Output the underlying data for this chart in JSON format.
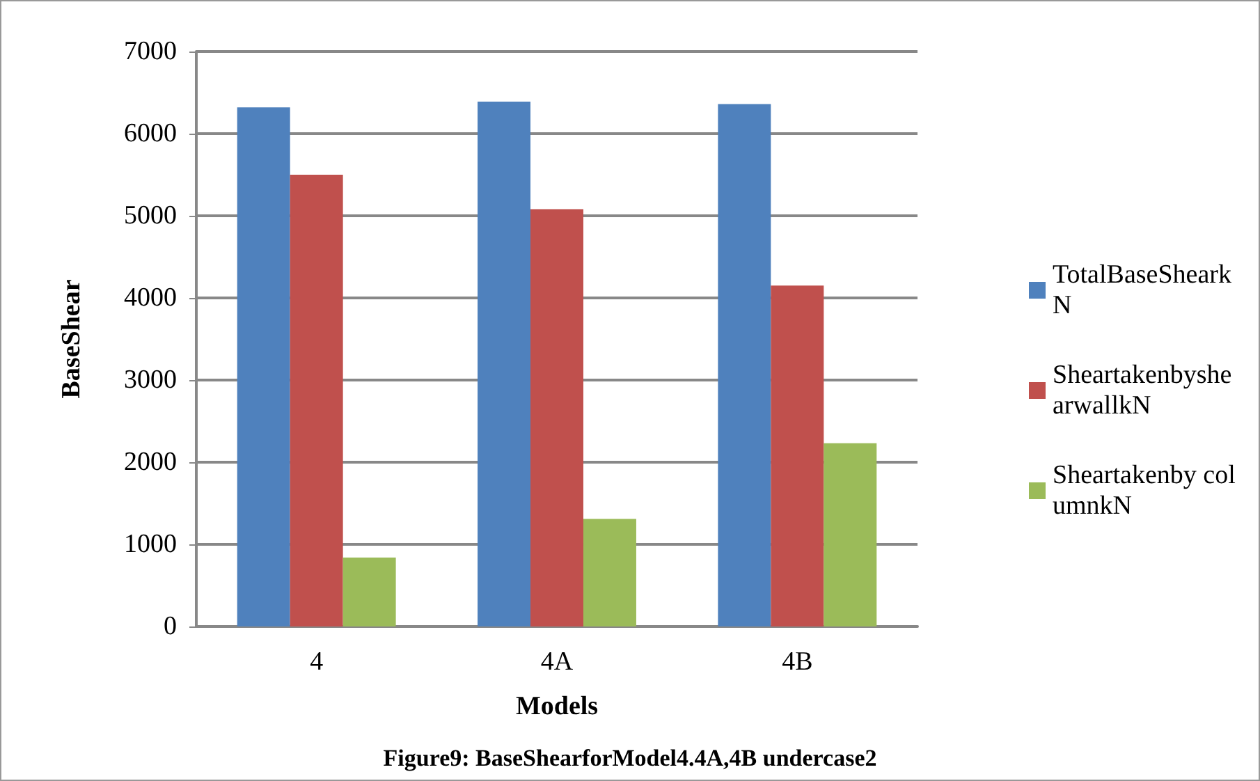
{
  "chart_data": {
    "type": "bar",
    "xlabel": "Models",
    "ylabel": "BaseShear",
    "categories": [
      "4",
      "4A",
      "4B"
    ],
    "series": [
      {
        "name": "TotalBaseShearkN",
        "color": "#4f81bd",
        "values": [
          6320,
          6390,
          6360
        ]
      },
      {
        "name": "SheartakenbyshearwallkN",
        "color": "#c0504d",
        "values": [
          5500,
          5080,
          4150
        ]
      },
      {
        "name": "Sheartakenby columnkN",
        "color": "#9bbb59",
        "values": [
          840,
          1310,
          2230
        ]
      }
    ],
    "ylim": [
      0,
      7000
    ],
    "yticks": [
      0,
      1000,
      2000,
      3000,
      4000,
      5000,
      6000,
      7000
    ],
    "grid": "y",
    "legend": "right",
    "annotations": [
      "Figure9: BaseShearforModel4.4A,4B undercase2"
    ]
  }
}
